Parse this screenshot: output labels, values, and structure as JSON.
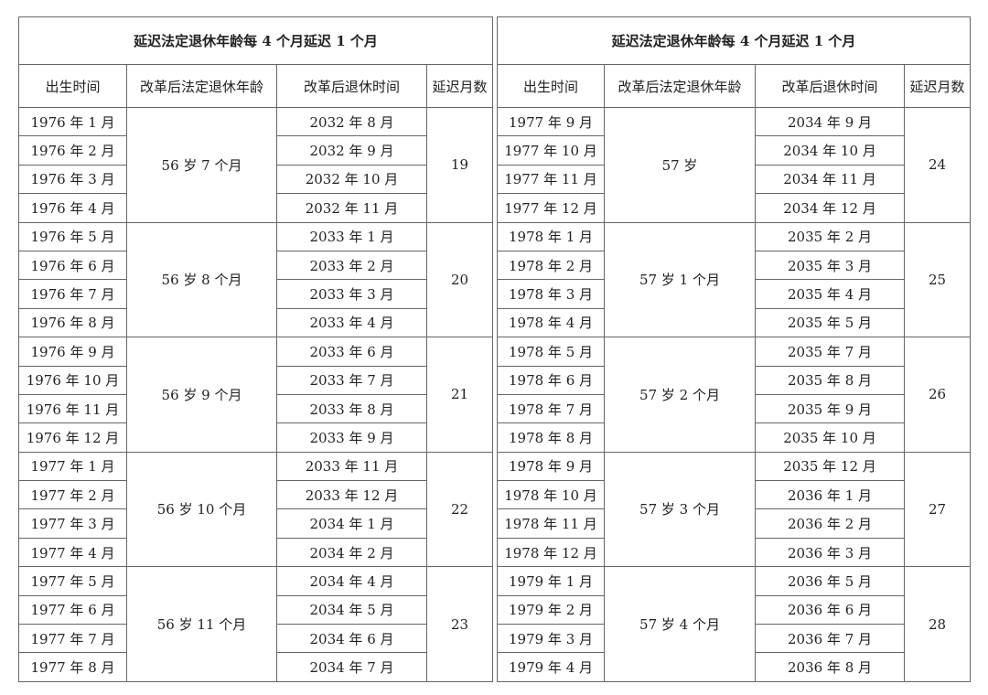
{
  "tables": [
    {
      "title": "延迟法定退休年龄每 4 个月延迟 1 个月",
      "headers": [
        "出生时间",
        "改革后法定退休年龄",
        "改革后退休时间",
        "延迟月数"
      ],
      "groups": [
        {
          "age": "56 岁 7 个月",
          "delay": 19,
          "rows": [
            [
              "1976 年 1 月",
              "2032 年 8 月"
            ],
            [
              "1976 年 2 月",
              "2032 年 9 月"
            ],
            [
              "1976 年 3 月",
              "2032 年 10 月"
            ],
            [
              "1976 年 4 月",
              "2032 年 11 月"
            ]
          ]
        },
        {
          "age": "56 岁 8 个月",
          "delay": 20,
          "rows": [
            [
              "1976 年 5 月",
              "2033 年 1 月"
            ],
            [
              "1976 年 6 月",
              "2033 年 2 月"
            ],
            [
              "1976 年 7 月",
              "2033 年 3 月"
            ],
            [
              "1976 年 8 月",
              "2033 年 4 月"
            ]
          ]
        },
        {
          "age": "56 岁 9 个月",
          "delay": 21,
          "rows": [
            [
              "1976 年 9 月",
              "2033 年 6 月"
            ],
            [
              "1976 年 10 月",
              "2033 年 7 月"
            ],
            [
              "1976 年 11 月",
              "2033 年 8 月"
            ],
            [
              "1976 年 12 月",
              "2033 年 9 月"
            ]
          ]
        },
        {
          "age": "56 岁 10 个月",
          "delay": 22,
          "rows": [
            [
              "1977 年 1 月",
              "2033 年 11 月"
            ],
            [
              "1977 年 2 月",
              "2033 年 12 月"
            ],
            [
              "1977 年 3 月",
              "2034 年 1 月"
            ],
            [
              "1977 年 4 月",
              "2034 年 2 月"
            ]
          ]
        },
        {
          "age": "56 岁 11 个月",
          "delay": 23,
          "rows": [
            [
              "1977 年 5 月",
              "2034 年 4 月"
            ],
            [
              "1977 年 6 月",
              "2034 年 5 月"
            ],
            [
              "1977 年 7 月",
              "2034 年 6 月"
            ],
            [
              "1977 年 8 月",
              "2034 年 7 月"
            ]
          ]
        }
      ]
    },
    {
      "title": "延迟法定退休年龄每 4 个月延迟 1 个月",
      "headers": [
        "出生时间",
        "改革后法定退休年龄",
        "改革后退休时间",
        "延迟月数"
      ],
      "groups": [
        {
          "age": "57 岁",
          "delay": 24,
          "rows": [
            [
              "1977 年 9 月",
              "2034 年 9 月"
            ],
            [
              "1977 年 10 月",
              "2034 年 10 月"
            ],
            [
              "1977 年 11 月",
              "2034 年 11 月"
            ],
            [
              "1977 年 12 月",
              "2034 年 12 月"
            ]
          ]
        },
        {
          "age": "57 岁 1 个月",
          "delay": 25,
          "rows": [
            [
              "1978 年 1 月",
              "2035 年 2 月"
            ],
            [
              "1978 年 2 月",
              "2035 年 3 月"
            ],
            [
              "1978 年 3 月",
              "2035 年 4 月"
            ],
            [
              "1978 年 4 月",
              "2035 年 5 月"
            ]
          ]
        },
        {
          "age": "57 岁 2 个月",
          "delay": 26,
          "rows": [
            [
              "1978 年 5 月",
              "2035 年 7 月"
            ],
            [
              "1978 年 6 月",
              "2035 年 8 月"
            ],
            [
              "1978 年 7 月",
              "2035 年 9 月"
            ],
            [
              "1978 年 8 月",
              "2035 年 10 月"
            ]
          ]
        },
        {
          "age": "57 岁 3 个月",
          "delay": 27,
          "rows": [
            [
              "1978 年 9 月",
              "2035 年 12 月"
            ],
            [
              "1978 年 10 月",
              "2036 年 1 月"
            ],
            [
              "1978 年 11 月",
              "2036 年 2 月"
            ],
            [
              "1978 年 12 月",
              "2036 年 3 月"
            ]
          ]
        },
        {
          "age": "57 岁 4 个月",
          "delay": 28,
          "rows": [
            [
              "1979 年 1 月",
              "2036 年 5 月"
            ],
            [
              "1979 年 2 月",
              "2036 年 6 月"
            ],
            [
              "1979 年 3 月",
              "2036 年 7 月"
            ],
            [
              "1979 年 4 月",
              "2036 年 8 月"
            ]
          ]
        }
      ]
    }
  ]
}
